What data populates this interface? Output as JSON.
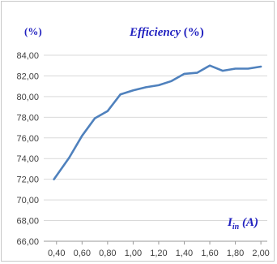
{
  "chart_data": {
    "type": "line",
    "title": "Efficiency",
    "title_unit": "(%)",
    "ylabel": "(%)",
    "xlabel_main": "I",
    "xlabel_sub": "in",
    "xlabel_unit": "(A)",
    "x_ticks": [
      "0,40",
      "0,60",
      "0,80",
      "1,00",
      "1,20",
      "1,40",
      "1,60",
      "1,80",
      "2,00"
    ],
    "y_ticks": [
      "66,00",
      "68,00",
      "70,00",
      "72,00",
      "74,00",
      "76,00",
      "78,00",
      "80,00",
      "82,00",
      "84,00"
    ],
    "xlim": [
      0.3,
      2.05
    ],
    "ylim": [
      66,
      84
    ],
    "grid": true,
    "line_color": "#4f81bd",
    "text_color": "#1f1fbf",
    "series": [
      {
        "x": [
          0.38,
          0.5,
          0.6,
          0.7,
          0.8,
          0.9,
          1.0,
          1.1,
          1.2,
          1.3,
          1.4,
          1.5,
          1.6,
          1.7,
          1.8,
          1.9,
          2.0
        ],
        "values": [
          72.0,
          74.1,
          76.2,
          77.9,
          78.6,
          80.2,
          80.6,
          80.9,
          81.1,
          81.5,
          82.2,
          82.3,
          83.0,
          82.5,
          82.7,
          82.7,
          82.9
        ]
      }
    ]
  }
}
